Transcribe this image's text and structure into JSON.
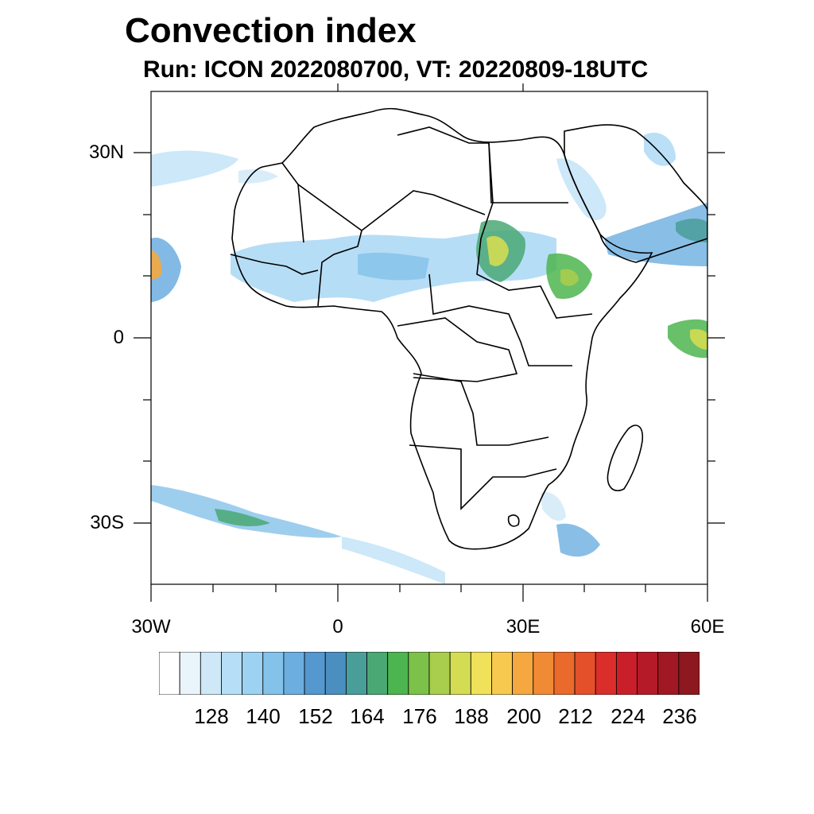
{
  "title": "Convection index",
  "subtitle": "Run: ICON 2022080700,  VT: 20220809-18UTC",
  "map": {
    "lat_labels": [
      "30N",
      "0",
      "30S"
    ],
    "lon_labels": [
      "30W",
      "0",
      "30E",
      "60E"
    ],
    "lat_range": [
      -40,
      40
    ],
    "lon_range": [
      -30,
      60
    ]
  },
  "colorbar": {
    "labels": [
      "128",
      "140",
      "152",
      "164",
      "176",
      "188",
      "200",
      "212",
      "224",
      "236"
    ],
    "colors": [
      "#ffffff",
      "#e9f4fb",
      "#cfe8f7",
      "#b6def6",
      "#9dd2f3",
      "#84c2ea",
      "#6caee0",
      "#5597cf",
      "#4a8fc0",
      "#4a9e9a",
      "#4aa874",
      "#4db54f",
      "#7cc24a",
      "#a9cd4c",
      "#d3dc52",
      "#efe15a",
      "#f7c94f",
      "#f4a83f",
      "#f18a35",
      "#ea6a2c",
      "#e3502a",
      "#d92e2a",
      "#c81f2b",
      "#b41a27",
      "#a01824",
      "#8e1820"
    ]
  }
}
